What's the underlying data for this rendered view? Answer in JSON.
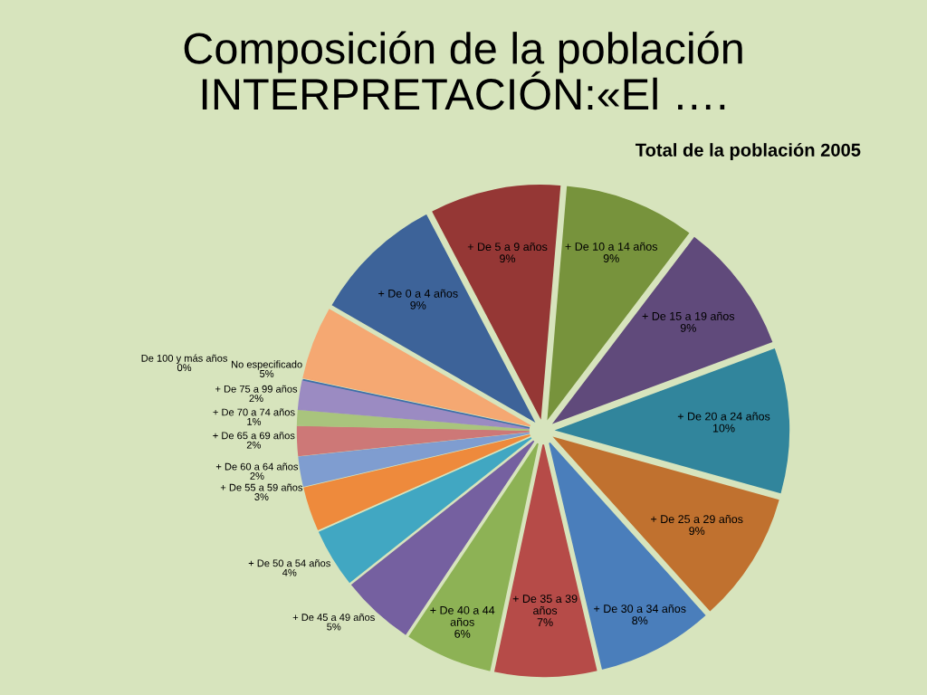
{
  "chart_data": {
    "type": "pie",
    "title": "Composición de la población INTERPRETACIÓN:«El ….",
    "subtitle": "Total de la población 2005",
    "categories": [
      "+ De 0 a 4 años",
      "+ De 5 a 9 años",
      "+ De 10 a 14 años",
      "+ De 15 a 19 años",
      "+ De 20 a 24 años",
      "+ De 25 a 29 años",
      "+ De 30 a 34 años",
      "+ De 35 a 39 años",
      "+ De 40 a 44 años",
      "+ De 45 a 49 años",
      "+ De 50 a 54 años",
      "+ De 55 a 59 años",
      "+ De 60 a 64 años",
      "+ De 65 a 69 años",
      "+ De 70 a 74 años",
      "+ De 75 a 99 años",
      "De 100 y más años",
      "No especificado"
    ],
    "values": [
      9,
      9,
      9,
      9,
      10,
      9,
      8,
      7,
      6,
      5,
      4,
      3,
      2,
      2,
      1,
      2,
      0,
      5
    ],
    "value_labels": [
      "9%",
      "9%",
      "9%",
      "9%",
      "10%",
      "9%",
      "8%",
      "7%",
      "6%",
      "5%",
      "4%",
      "3%",
      "2%",
      "2%",
      "1%",
      "2%",
      "0%",
      "5%"
    ],
    "colors": [
      "#3d6399",
      "#953735",
      "#77933c",
      "#604a7b",
      "#31859c",
      "#c0712f",
      "#4a7ebb",
      "#b64b48",
      "#8db255",
      "#7560a0",
      "#41a7c2",
      "#ee8a3c",
      "#7f9dd0",
      "#cd7877",
      "#a9c47d",
      "#9b8bc2",
      "#3e6fa8",
      "#f5a872"
    ]
  }
}
